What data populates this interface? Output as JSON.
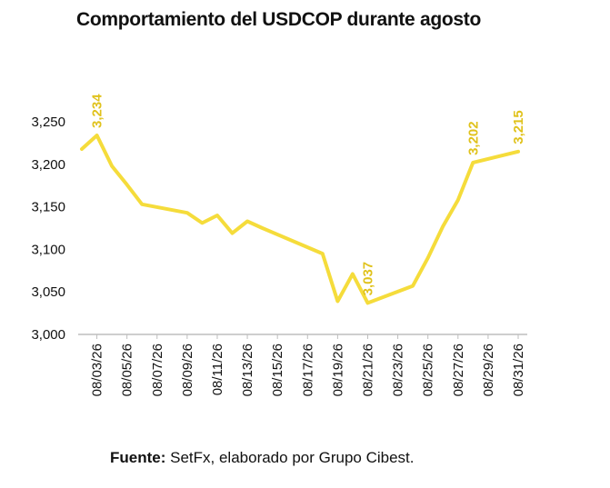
{
  "title": "Comportamiento del USDCOP durante agosto",
  "source": {
    "label": "Fuente:",
    "text": "SetFx, elaborado por Grupo Cibest."
  },
  "colors": {
    "line": "#f5dc3b",
    "data_label": "#e0c21c",
    "axis": "#bdbdbd"
  },
  "chart_data": {
    "type": "line",
    "xlabel": "",
    "ylabel": "",
    "ylim": [
      3000,
      3250
    ],
    "yticks": [
      3000,
      3050,
      3100,
      3150,
      3200,
      3250
    ],
    "ytick_labels": [
      "3,000",
      "3,050",
      "3,100",
      "3,150",
      "3,200",
      "3,250"
    ],
    "grid": false,
    "x": [
      "08/02/26",
      "08/03/26",
      "08/04/26",
      "08/05/26",
      "08/06/26",
      "08/09/26",
      "08/10/26",
      "08/11/26",
      "08/12/26",
      "08/13/26",
      "08/14/26",
      "08/18/26",
      "08/19/26",
      "08/20/26",
      "08/21/26",
      "08/24/26",
      "08/25/26",
      "08/26/26",
      "08/27/26",
      "08/28/26",
      "08/31/26"
    ],
    "xtick_labels": [
      "08/03/26",
      "08/05/26",
      "08/07/26",
      "08/09/26",
      "08/11/26",
      "08/13/26",
      "08/15/26",
      "08/17/26",
      "08/19/26",
      "08/21/26",
      "08/23/26",
      "08/25/26",
      "08/27/26",
      "08/29/26",
      "08/31/26"
    ],
    "series": [
      {
        "values": [
          3218,
          3234,
          3198,
          3176,
          3153,
          3143,
          3131,
          3140,
          3119,
          3133,
          3125,
          3095,
          3039,
          3071,
          3037,
          3057,
          3090,
          3127,
          3158,
          3202,
          3215
        ]
      }
    ],
    "data_labels": [
      {
        "x": "08/03/26",
        "text": "3,234"
      },
      {
        "x": "08/21/26",
        "text": "3,037"
      },
      {
        "x": "08/28/26",
        "text": "3,202"
      },
      {
        "x": "08/31/26",
        "text": "3,215"
      }
    ]
  }
}
